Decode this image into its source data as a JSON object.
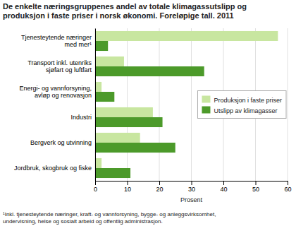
{
  "chart_data": {
    "type": "bar",
    "orientation": "horizontal",
    "title": "De enkelte næringsgruppenes andel av totale klimagassutslipp og\nproduksjon i faste priser i norsk økonomi. Foreløpige tall. 2011",
    "categories": [
      "Tjenesteytende næringer\nmed mer¹",
      "Transport inkl. utenriks\nsjøfart og luftfart",
      "Energi- og vannforsyning,\navløp og renovasjon",
      "Industri",
      "Bergverk og utvinning",
      "Jordbruk, skogbruk og fiske"
    ],
    "series": [
      {
        "name": "Produksjon i faste priser",
        "color": "#c8e6a0",
        "values": [
          57,
          9,
          2,
          18,
          14,
          2
        ]
      },
      {
        "name": "Utslipp av klimagasser",
        "color": "#4c9a2a",
        "values": [
          4,
          34,
          6,
          21,
          25,
          11
        ]
      }
    ],
    "xlabel": "Prosent",
    "xlim": [
      0,
      60
    ],
    "xticks": [
      0,
      10,
      20,
      30,
      40,
      50,
      60
    ],
    "grid": true,
    "legend": "right",
    "footnote": "¹Inkl. tjenesteytende næringer, kraft- og vannforsyning, bygge- og anleggsvirksomhet,\nundervisning, helse og sosialt arbeid og offentlig administrasjon."
  }
}
